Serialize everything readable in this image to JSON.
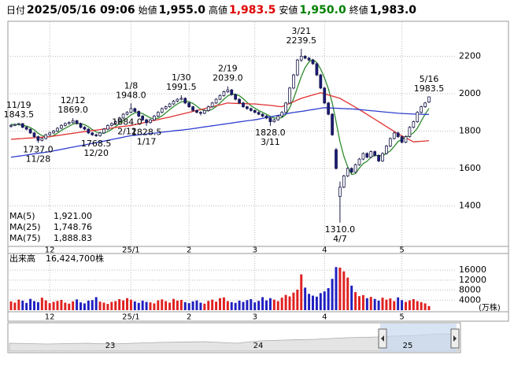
{
  "header": [
    {
      "label": "日付",
      "value": "2025/05/16 09:06"
    },
    {
      "label": "始値",
      "value": "1,955.0"
    },
    {
      "label": "高値",
      "value": "1,983.5"
    },
    {
      "label": "安値",
      "value": "1,950.0"
    },
    {
      "label": "終値",
      "value": "1,983.0"
    }
  ],
  "chart_data": {
    "type": "candlestick",
    "up_color": "#ffffff",
    "down_color": "#1a1a7a",
    "grid": true,
    "header_colors": [
      "#000000",
      "#000000",
      "#e00000",
      "#008000",
      "#000000"
    ],
    "categories": [
      null,
      null,
      null,
      null,
      null,
      null,
      null,
      null,
      null,
      null,
      "12",
      null,
      null,
      null,
      null,
      null,
      null,
      null,
      null,
      null,
      null,
      null,
      null,
      null,
      null,
      null,
      null,
      null,
      null,
      null,
      null,
      "25/1",
      null,
      null,
      null,
      null,
      null,
      null,
      null,
      null,
      null,
      null,
      null,
      null,
      null,
      null,
      "2",
      null,
      null,
      null,
      null,
      null,
      null,
      null,
      null,
      null,
      null,
      null,
      null,
      null,
      null,
      null,
      null,
      "3",
      null,
      null,
      null,
      null,
      null,
      null,
      null,
      null,
      null,
      null,
      null,
      null,
      null,
      null,
      null,
      null,
      null,
      "4",
      null,
      null,
      null,
      null,
      null,
      null,
      null,
      null,
      null,
      null,
      null,
      null,
      null,
      null,
      null,
      null,
      null,
      null,
      null,
      "5",
      null,
      null,
      null,
      null,
      null,
      null,
      null
    ],
    "candles": [
      [
        1825,
        1838,
        1818,
        1830
      ],
      [
        1830,
        1840,
        1826,
        1835
      ],
      [
        1835,
        1843.5,
        1830,
        1840
      ],
      [
        1840,
        1842,
        1815,
        1820
      ],
      [
        1820,
        1826,
        1804,
        1810
      ],
      [
        1810,
        1814,
        1785,
        1790
      ],
      [
        1790,
        1795,
        1764,
        1770
      ],
      [
        1770,
        1775,
        1737,
        1750
      ],
      [
        1750,
        1766,
        1745,
        1760
      ],
      [
        1760,
        1786,
        1755,
        1780
      ],
      [
        1780,
        1796,
        1774,
        1790
      ],
      [
        1790,
        1806,
        1784,
        1800
      ],
      [
        1800,
        1821,
        1795,
        1815
      ],
      [
        1815,
        1836,
        1810,
        1830
      ],
      [
        1830,
        1846,
        1824,
        1840
      ],
      [
        1840,
        1852,
        1834,
        1845
      ],
      [
        1845,
        1869,
        1840,
        1855
      ],
      [
        1855,
        1860,
        1834,
        1840
      ],
      [
        1840,
        1845,
        1814,
        1820
      ],
      [
        1820,
        1826,
        1804,
        1810
      ],
      [
        1810,
        1815,
        1784,
        1790
      ],
      [
        1790,
        1796,
        1774,
        1780
      ],
      [
        1780,
        1786,
        1768.5,
        1775
      ],
      [
        1775,
        1796,
        1770,
        1790
      ],
      [
        1790,
        1816,
        1785,
        1810
      ],
      [
        1810,
        1836,
        1804,
        1830
      ],
      [
        1830,
        1846,
        1824,
        1840
      ],
      [
        1840,
        1856,
        1835,
        1850
      ],
      [
        1850,
        1876,
        1845,
        1870
      ],
      [
        1870,
        1896,
        1864,
        1890
      ],
      [
        1890,
        1906,
        1884,
        1900
      ],
      [
        1900,
        1948,
        1895,
        1920
      ],
      [
        1920,
        1925,
        1899,
        1905
      ],
      [
        1905,
        1910,
        1874,
        1880
      ],
      [
        1880,
        1885,
        1854,
        1860
      ],
      [
        1860,
        1866,
        1828.5,
        1845
      ],
      [
        1845,
        1866,
        1840,
        1860
      ],
      [
        1860,
        1886,
        1855,
        1880
      ],
      [
        1880,
        1906,
        1874,
        1900
      ],
      [
        1900,
        1926,
        1895,
        1920
      ],
      [
        1920,
        1936,
        1914,
        1930
      ],
      [
        1930,
        1951,
        1925,
        1945
      ],
      [
        1945,
        1966,
        1940,
        1960
      ],
      [
        1960,
        1976,
        1954,
        1970
      ],
      [
        1970,
        1991.5,
        1964,
        1975
      ],
      [
        1975,
        1980,
        1944,
        1950
      ],
      [
        1950,
        1955,
        1924,
        1930
      ],
      [
        1930,
        1935,
        1904,
        1910
      ],
      [
        1910,
        1915,
        1894,
        1900
      ],
      [
        1900,
        1906,
        1884,
        1895
      ],
      [
        1895,
        1916,
        1890,
        1910
      ],
      [
        1910,
        1936,
        1904,
        1930
      ],
      [
        1930,
        1956,
        1925,
        1950
      ],
      [
        1950,
        1976,
        1944,
        1970
      ],
      [
        1970,
        1996,
        1965,
        1990
      ],
      [
        1990,
        2016,
        1984,
        2010
      ],
      [
        2010,
        2039,
        2004,
        2020
      ],
      [
        2020,
        2025,
        1989,
        1995
      ],
      [
        1995,
        2000,
        1964,
        1970
      ],
      [
        1970,
        1975,
        1944,
        1950
      ],
      [
        1950,
        1956,
        1924,
        1930
      ],
      [
        1930,
        1935,
        1914,
        1920
      ],
      [
        1920,
        1926,
        1904,
        1910
      ],
      [
        1910,
        1915,
        1894,
        1900
      ],
      [
        1900,
        1906,
        1885,
        1890
      ],
      [
        1890,
        1895,
        1874,
        1880
      ],
      [
        1880,
        1886,
        1864,
        1870
      ],
      [
        1870,
        1875,
        1828,
        1850
      ],
      [
        1850,
        1866,
        1845,
        1860
      ],
      [
        1860,
        1886,
        1855,
        1880
      ],
      [
        1880,
        1906,
        1874,
        1900
      ],
      [
        1900,
        1956,
        1895,
        1950
      ],
      [
        1950,
        2036,
        1944,
        2030
      ],
      [
        2030,
        2106,
        2024,
        2100
      ],
      [
        2100,
        2186,
        2094,
        2180
      ],
      [
        2180,
        2239.5,
        2170,
        2200
      ],
      [
        2200,
        2206,
        2184,
        2190
      ],
      [
        2190,
        2196,
        2174,
        2180
      ],
      [
        2180,
        2186,
        2154,
        2160
      ],
      [
        2160,
        2166,
        2094,
        2100
      ],
      [
        2100,
        2106,
        2024,
        2030
      ],
      [
        2030,
        2036,
        1944,
        1950
      ],
      [
        1950,
        1956,
        1884,
        1890
      ],
      [
        1890,
        1896,
        1774,
        1780
      ],
      [
        1700,
        1710,
        1594,
        1600
      ],
      [
        1450,
        1530,
        1310,
        1500
      ],
      [
        1500,
        1566,
        1494,
        1560
      ],
      [
        1560,
        1606,
        1554,
        1600
      ],
      [
        1600,
        1606,
        1574,
        1580
      ],
      [
        1580,
        1626,
        1575,
        1620
      ],
      [
        1620,
        1656,
        1614,
        1650
      ],
      [
        1650,
        1686,
        1644,
        1680
      ],
      [
        1680,
        1686,
        1654,
        1660
      ],
      [
        1660,
        1696,
        1654,
        1690
      ],
      [
        1690,
        1696,
        1664,
        1670
      ],
      [
        1670,
        1676,
        1634,
        1640
      ],
      [
        1640,
        1686,
        1635,
        1680
      ],
      [
        1680,
        1726,
        1674,
        1720
      ],
      [
        1720,
        1766,
        1714,
        1760
      ],
      [
        1760,
        1796,
        1754,
        1790
      ],
      [
        1790,
        1796,
        1764,
        1770
      ],
      [
        1770,
        1776,
        1734,
        1740
      ],
      [
        1740,
        1776,
        1735,
        1770
      ],
      [
        1770,
        1826,
        1764,
        1820
      ],
      [
        1820,
        1856,
        1814,
        1850
      ],
      [
        1850,
        1906,
        1844,
        1900
      ],
      [
        1900,
        1936,
        1894,
        1930
      ],
      [
        1930,
        1956,
        1924,
        1950
      ],
      [
        1955,
        1983.5,
        1950,
        1983
      ]
    ],
    "series": [
      {
        "name": "MA(5)",
        "color": "#2e8b2e",
        "value_label": "1,921.00",
        "values": [
          1835,
          1835,
          1835,
          1830,
          1827,
          1819,
          1806,
          1788,
          1776,
          1770,
          1770,
          1776,
          1789,
          1803,
          1815,
          1826,
          1837,
          1842,
          1840,
          1834,
          1823,
          1808,
          1795,
          1789,
          1789,
          1797,
          1809,
          1824,
          1840,
          1856,
          1870,
          1886,
          1897,
          1899,
          1893,
          1882,
          1870,
          1865,
          1869,
          1881,
          1898,
          1915,
          1931,
          1945,
          1956,
          1960,
          1957,
          1947,
          1933,
          1917,
          1909,
          1909,
          1917,
          1931,
          1950,
          1970,
          1988,
          1997,
          1997,
          1989,
          1973,
          1953,
          1936,
          1922,
          1910,
          1900,
          1890,
          1878,
          1870,
          1868,
          1872,
          1888,
          1924,
          1972,
          2032,
          2092,
          2140,
          2170,
          2182,
          2166,
          2132,
          2084,
          2026,
          1950,
          1850,
          1744,
          1666,
          1608,
          1568,
          1572,
          1602,
          1626,
          1638,
          1660,
          1670,
          1668,
          1668,
          1680,
          1694,
          1718,
          1744,
          1756,
          1766,
          1778,
          1790,
          1816,
          1854,
          1890,
          1921
        ]
      },
      {
        "name": "MA(25)",
        "color": "#e03030",
        "value_label": "1,748.76",
        "values": [
          1756,
          1757,
          1759,
          1760,
          1762,
          1763,
          1764,
          1766,
          1767,
          1769,
          1770,
          1773,
          1776,
          1779,
          1782,
          1785,
          1788,
          1791,
          1794,
          1797,
          1800,
          1803,
          1805,
          1808,
          1811,
          1814,
          1816,
          1819,
          1822,
          1825,
          1827,
          1830,
          1834,
          1839,
          1843,
          1848,
          1852,
          1857,
          1861,
          1866,
          1870,
          1875,
          1880,
          1885,
          1890,
          1895,
          1900,
          1905,
          1910,
          1915,
          1920,
          1925,
          1930,
          1935,
          1940,
          1945,
          1950,
          1949,
          1948,
          1947,
          1947,
          1946,
          1945,
          1945,
          1943,
          1941,
          1939,
          1937,
          1935,
          1932,
          1930,
          1939,
          1948,
          1957,
          1966,
          1975,
          1981,
          1987,
          1993,
          1999,
          2005,
          1999,
          1993,
          1987,
          1981,
          1975,
          1963,
          1951,
          1939,
          1927,
          1915,
          1902,
          1889,
          1876,
          1863,
          1850,
          1837,
          1824,
          1811,
          1798,
          1785,
          1774,
          1764,
          1753,
          1742,
          1744,
          1745,
          1747,
          1748.76
        ]
      },
      {
        "name": "MA(75)",
        "color": "#2f3fd0",
        "value_label": "1,888.83",
        "values": [
          1660,
          1663,
          1666,
          1669,
          1672,
          1675,
          1678,
          1681,
          1684,
          1687,
          1690,
          1694,
          1698,
          1702,
          1706,
          1710,
          1714,
          1718,
          1722,
          1726,
          1730,
          1734,
          1738,
          1742,
          1746,
          1750,
          1755,
          1759,
          1763,
          1767,
          1771,
          1775,
          1777,
          1780,
          1782,
          1784,
          1787,
          1789,
          1791,
          1794,
          1796,
          1798,
          1801,
          1803,
          1805,
          1808,
          1810,
          1813,
          1816,
          1819,
          1822,
          1825,
          1828,
          1831,
          1834,
          1837,
          1840,
          1843,
          1846,
          1849,
          1852,
          1855,
          1857,
          1860,
          1864,
          1868,
          1872,
          1876,
          1880,
          1884,
          1888,
          1892,
          1896,
          1899,
          1902,
          1905,
          1908,
          1912,
          1915,
          1918,
          1922,
          1925,
          1924,
          1923,
          1922,
          1921,
          1920,
          1919,
          1918,
          1917,
          1915,
          1913,
          1911,
          1909,
          1907,
          1905,
          1903,
          1901,
          1899,
          1897,
          1895,
          1894,
          1893,
          1892,
          1891,
          1891,
          1890,
          1889,
          1888.83
        ]
      }
    ],
    "ylim": [
      1183,
      2383
    ],
    "yticks": [
      1400,
      1600,
      1800,
      2000,
      2200
    ],
    "annotations": [
      {
        "date": "11/19",
        "value": 1843.5,
        "label": "1843.5"
      },
      {
        "date": "11/28",
        "value": 1737,
        "label": "1737.0"
      },
      {
        "date": "12/12",
        "value": 1869,
        "label": "1869.0"
      },
      {
        "date": "12/20",
        "value": 1768.5,
        "label": "1768.5"
      },
      {
        "date": "1/8",
        "value": 1948,
        "label": "1948.0"
      },
      {
        "date": "1/17",
        "value": 1828.5,
        "label": "1828.5"
      },
      {
        "date": "1/30",
        "value": 1991.5,
        "label": "1991.5"
      },
      {
        "date": "2/12",
        "value": 1884,
        "label": "1884.0"
      },
      {
        "date": "2/19",
        "value": 2039,
        "label": "2039.0"
      },
      {
        "date": "3/11",
        "value": 1828,
        "label": "1828.0"
      },
      {
        "date": "3/21",
        "value": 2239.5,
        "label": "2239.5"
      },
      {
        "date": "4/7",
        "value": 1310,
        "label": "1310.0"
      },
      {
        "date": "5/16",
        "value": 1983.5,
        "label": "1983.5"
      }
    ],
    "volume": {
      "title": "出来高",
      "current": "16,424,700株",
      "unit": "(万株)",
      "up_color": "#e02020",
      "down_color": "#2020c0",
      "ylim": [
        0,
        22000
      ],
      "yticks": [
        4000,
        8000,
        12000,
        16000
      ],
      "values": [
        3500,
        3000,
        4200,
        3800,
        2900,
        4500,
        3600,
        3200,
        5000,
        3900,
        2800,
        3300,
        3700,
        4100,
        3000,
        2600,
        3500,
        4300,
        3100,
        2700,
        3800,
        4000,
        5200,
        3400,
        3000,
        2500,
        3300,
        3600,
        4400,
        3900,
        4800,
        4200,
        3500,
        2900,
        3800,
        3300,
        3100,
        2700,
        3900,
        4300,
        3600,
        3000,
        4500,
        3800,
        4100,
        3200,
        2800,
        3500,
        3900,
        3000,
        2600,
        3700,
        4200,
        3400,
        4800,
        5100,
        3600,
        3200,
        2900,
        3800,
        3300,
        4000,
        4400,
        3100,
        3700,
        5200,
        3900,
        4800,
        4200,
        3600,
        5000,
        6100,
        5500,
        7000,
        8200,
        14300,
        9000,
        6500,
        5800,
        5400,
        6800,
        7500,
        8800,
        12500,
        17200,
        17000,
        15500,
        13000,
        9800,
        7200,
        5600,
        6000,
        4800,
        5300,
        4500,
        3800,
        5000,
        4200,
        4700,
        3600,
        5100,
        4000,
        3300,
        3900,
        4400,
        3600,
        3200,
        2700,
        1642.47
      ]
    },
    "navigator": {
      "labels": [
        "23",
        "24",
        "25"
      ]
    }
  }
}
